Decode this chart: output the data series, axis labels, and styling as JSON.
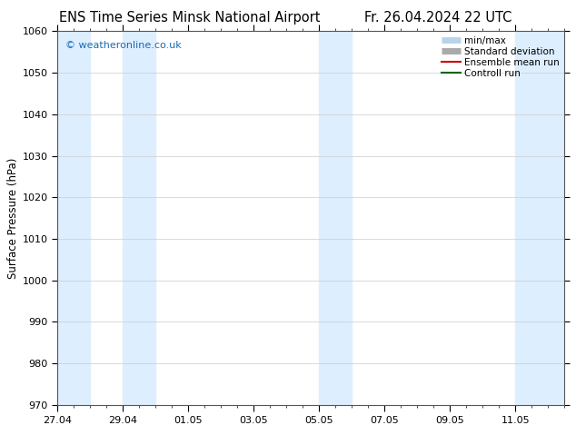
{
  "title_left": "ENS Time Series Minsk National Airport",
  "title_right": "Fr. 26.04.2024 22 UTC",
  "ylabel": "Surface Pressure (hPa)",
  "ylim": [
    970,
    1060
  ],
  "yticks": [
    970,
    980,
    990,
    1000,
    1010,
    1020,
    1030,
    1040,
    1050,
    1060
  ],
  "xtick_labels": [
    "27.04",
    "29.04",
    "01.05",
    "03.05",
    "05.05",
    "07.05",
    "09.05",
    "11.05"
  ],
  "xtick_days": [
    0,
    2,
    4,
    6,
    8,
    10,
    12,
    14
  ],
  "total_days": 15.5,
  "shaded_intervals": [
    [
      0,
      2
    ],
    [
      2,
      3
    ],
    [
      8,
      10
    ],
    [
      14,
      15.5
    ]
  ],
  "shaded_color": "#ddeeff",
  "watermark_text": "© weatheronline.co.uk",
  "watermark_color": "#1a6bb5",
  "bg_color": "#ffffff",
  "legend_items": [
    {
      "label": "min/max",
      "color": "#b8d4e8",
      "lw": 5
    },
    {
      "label": "Standard deviation",
      "color": "#aaaaaa",
      "lw": 5
    },
    {
      "label": "Ensemble mean run",
      "color": "#cc0000",
      "lw": 1.5
    },
    {
      "label": "Controll run",
      "color": "#006600",
      "lw": 1.5
    }
  ],
  "title_fontsize": 10.5,
  "axis_label_fontsize": 8.5,
  "tick_fontsize": 8,
  "legend_fontsize": 7.5
}
